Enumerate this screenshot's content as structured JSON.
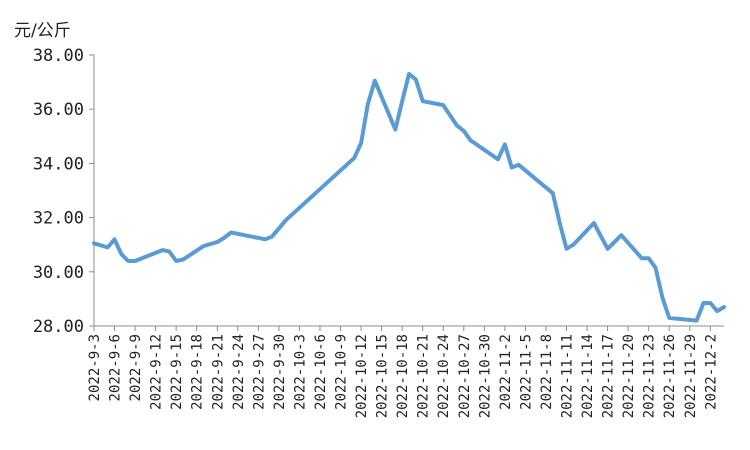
{
  "chart_data": {
    "type": "line",
    "ylabel": "元/公斤",
    "ylim": [
      28,
      38
    ],
    "yticks": [
      "28.00",
      "30.00",
      "32.00",
      "34.00",
      "36.00",
      "38.00"
    ],
    "xtick_labels": [
      "2022-9-3",
      "2022-9-6",
      "2022-9-9",
      "2022-9-12",
      "2022-9-15",
      "2022-9-18",
      "2022-9-21",
      "2022-9-24",
      "2022-9-27",
      "2022-9-30",
      "2022-10-3",
      "2022-10-6",
      "2022-10-9",
      "2022-10-12",
      "2022-10-15",
      "2022-10-18",
      "2022-10-21",
      "2022-10-24",
      "2022-10-27",
      "2022-10-30",
      "2022-11-2",
      "2022-11-5",
      "2022-11-8",
      "2022-11-11",
      "2022-11-14",
      "2022-11-17",
      "2022-11-20",
      "2022-11-23",
      "2022-11-26",
      "2022-11-29",
      "2022-12-2"
    ],
    "line_color": "#5B9BD5",
    "grid": false,
    "points": [
      {
        "x": "2022-9-3",
        "y": 31.05
      },
      {
        "x": "2022-9-5",
        "y": 30.9
      },
      {
        "x": "2022-9-6",
        "y": 31.2
      },
      {
        "x": "2022-9-7",
        "y": 30.65
      },
      {
        "x": "2022-9-8",
        "y": 30.4
      },
      {
        "x": "2022-9-9",
        "y": 30.4
      },
      {
        "x": "2022-9-13",
        "y": 30.8
      },
      {
        "x": "2022-9-14",
        "y": 30.75
      },
      {
        "x": "2022-9-15",
        "y": 30.4
      },
      {
        "x": "2022-9-16",
        "y": 30.45
      },
      {
        "x": "2022-9-19",
        "y": 30.95
      },
      {
        "x": "2022-9-21",
        "y": 31.1
      },
      {
        "x": "2022-9-22",
        "y": 31.25
      },
      {
        "x": "2022-9-23",
        "y": 31.45
      },
      {
        "x": "2022-9-28",
        "y": 31.2
      },
      {
        "x": "2022-9-29",
        "y": 31.3
      },
      {
        "x": "2022-9-30",
        "y": 31.6
      },
      {
        "x": "2022-10-1",
        "y": 31.9
      },
      {
        "x": "2022-10-11",
        "y": 34.2
      },
      {
        "x": "2022-10-12",
        "y": 34.75
      },
      {
        "x": "2022-10-13",
        "y": 36.2
      },
      {
        "x": "2022-10-14",
        "y": 37.05
      },
      {
        "x": "2022-10-17",
        "y": 35.25
      },
      {
        "x": "2022-10-18",
        "y": 36.3
      },
      {
        "x": "2022-10-19",
        "y": 37.3
      },
      {
        "x": "2022-10-20",
        "y": 37.1
      },
      {
        "x": "2022-10-21",
        "y": 36.3
      },
      {
        "x": "2022-10-24",
        "y": 36.15
      },
      {
        "x": "2022-10-26",
        "y": 35.4
      },
      {
        "x": "2022-10-27",
        "y": 35.2
      },
      {
        "x": "2022-10-28",
        "y": 34.85
      },
      {
        "x": "2022-11-1",
        "y": 34.15
      },
      {
        "x": "2022-11-2",
        "y": 34.7
      },
      {
        "x": "2022-11-3",
        "y": 33.85
      },
      {
        "x": "2022-11-4",
        "y": 33.95
      },
      {
        "x": "2022-11-9",
        "y": 32.9
      },
      {
        "x": "2022-11-10",
        "y": 31.8
      },
      {
        "x": "2022-11-11",
        "y": 30.85
      },
      {
        "x": "2022-11-12",
        "y": 31
      },
      {
        "x": "2022-11-15",
        "y": 31.8
      },
      {
        "x": "2022-11-17",
        "y": 30.85
      },
      {
        "x": "2022-11-19",
        "y": 31.35
      },
      {
        "x": "2022-11-22",
        "y": 30.5
      },
      {
        "x": "2022-11-23",
        "y": 30.5
      },
      {
        "x": "2022-11-24",
        "y": 30.15
      },
      {
        "x": "2022-11-25",
        "y": 29.05
      },
      {
        "x": "2022-11-26",
        "y": 28.3
      },
      {
        "x": "2022-11-30",
        "y": 28.2
      },
      {
        "x": "2022-12-1",
        "y": 28.85
      },
      {
        "x": "2022-12-2",
        "y": 28.85
      },
      {
        "x": "2022-12-3",
        "y": 28.55
      },
      {
        "x": "2022-12-4",
        "y": 28.7
      }
    ]
  }
}
